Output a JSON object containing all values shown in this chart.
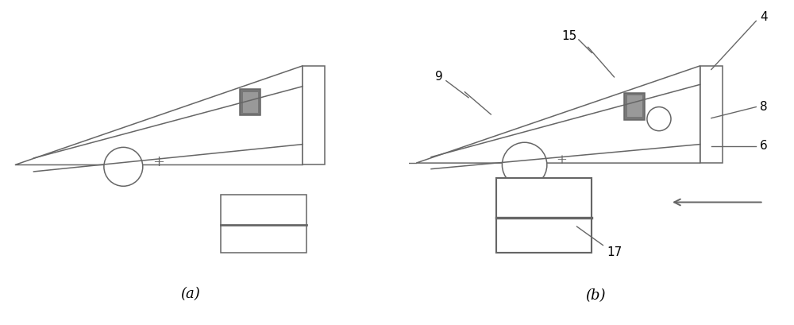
{
  "bg_color": "#ffffff",
  "line_color": "#666666",
  "dark_gray": "#777777",
  "mid_gray": "#999999",
  "label_a": "(a)",
  "label_b": "(b)",
  "lw": 1.1
}
